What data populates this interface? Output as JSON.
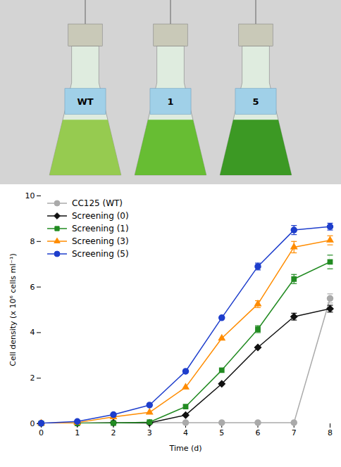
{
  "chart_data": [
    {
      "type": "illustration",
      "annotations": [
        "WT",
        "1",
        "5"
      ],
      "colors": [
        "#8ec840",
        "#5ab820",
        "#2a9010"
      ]
    },
    {
      "type": "line",
      "xlabel": "Time (d)",
      "ylabel": "Cell density (x 10⁶ cells ml⁻¹)",
      "x": [
        0,
        1,
        2,
        3,
        4,
        5,
        6,
        7,
        8
      ],
      "series": [
        {
          "name": "CC125 (WT)",
          "color": "#aaaaaa",
          "marker": "circle",
          "values": [
            0.02,
            0.02,
            0.05,
            0.05,
            0.05,
            0.05,
            0.05,
            0.05,
            5.5
          ],
          "errors": [
            null,
            null,
            null,
            null,
            null,
            null,
            null,
            null,
            0.2
          ]
        },
        {
          "name": "Screening (0)",
          "color": "#111111",
          "marker": "diamond",
          "values": [
            0.02,
            0.02,
            0.04,
            0.04,
            0.38,
            1.75,
            3.35,
            4.7,
            5.05
          ],
          "errors": [
            null,
            null,
            null,
            null,
            null,
            null,
            null,
            0.15,
            0.15
          ]
        },
        {
          "name": "Screening (1)",
          "color": "#228B22",
          "marker": "square",
          "values": [
            0.02,
            0.02,
            0.03,
            0.07,
            0.75,
            2.35,
            4.15,
            6.35,
            7.1
          ],
          "errors": [
            null,
            null,
            null,
            null,
            null,
            null,
            0.15,
            0.2,
            0.3
          ]
        },
        {
          "name": "Screening (3)",
          "color": "#FF8C00",
          "marker": "triangle",
          "values": [
            0.02,
            0.05,
            0.3,
            0.5,
            1.6,
            3.75,
            5.25,
            7.75,
            8.05
          ],
          "errors": [
            null,
            null,
            null,
            null,
            null,
            null,
            0.15,
            0.25,
            0.2
          ]
        },
        {
          "name": "Screening (5)",
          "color": "#1E3ECC",
          "marker": "circle",
          "values": [
            0.02,
            0.1,
            0.4,
            0.82,
            2.3,
            4.65,
            6.9,
            8.5,
            8.65
          ],
          "errors": [
            null,
            null,
            null,
            null,
            null,
            null,
            0.15,
            0.2,
            0.15
          ]
        }
      ],
      "xlim": [
        0,
        8
      ],
      "ylim": [
        0,
        10
      ],
      "xticks": [
        0,
        1,
        2,
        3,
        4,
        5,
        6,
        7,
        8
      ],
      "yticks": [
        0,
        2,
        4,
        6,
        8,
        10
      ],
      "legend": "upper left",
      "grid": false
    }
  ]
}
